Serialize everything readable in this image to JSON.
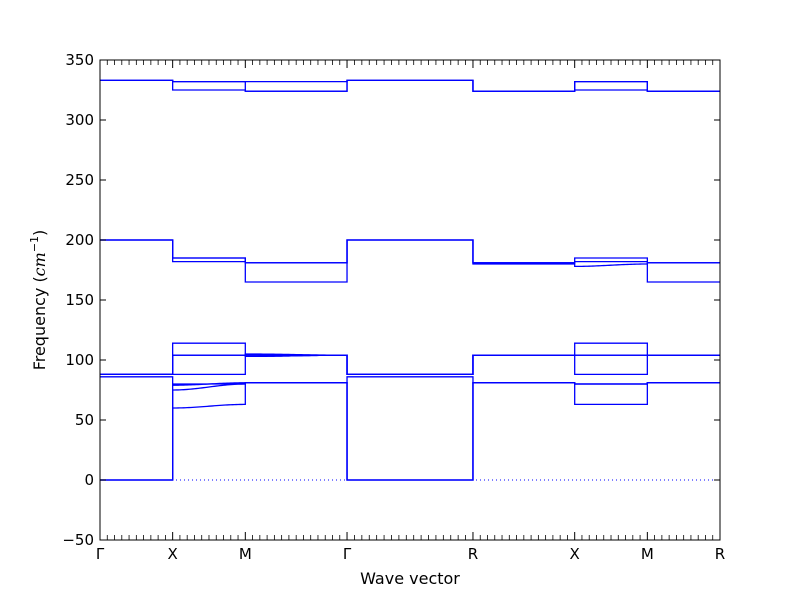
{
  "chart_data": {
    "type": "line",
    "title": "",
    "xlabel": "Wave vector",
    "ylabel_prefix": "Frequency (",
    "ylabel_unit_base": "cm",
    "ylabel_unit_exp": "−1",
    "ylabel_suffix": ")",
    "ylim": [
      -50,
      350
    ],
    "yticks": [
      -50,
      0,
      50,
      100,
      150,
      200,
      250,
      300,
      350
    ],
    "ytick_labels": [
      "−50",
      "0",
      "50",
      "100",
      "150",
      "200",
      "250",
      "300",
      "350"
    ],
    "xlim": [
      0,
      5.12
    ],
    "high_symmetry_points": [
      {
        "label": "Γ",
        "x": 0.0
      },
      {
        "label": "X",
        "x": 0.6
      },
      {
        "label": "M",
        "x": 1.2
      },
      {
        "label": "Γ",
        "x": 2.04
      },
      {
        "label": "R",
        "x": 3.08
      },
      {
        "label": "X",
        "x": 3.92
      },
      {
        "label": "M",
        "x": 4.52
      },
      {
        "label": "R",
        "x": 5.12
      }
    ],
    "zero_line": {
      "y": 0,
      "style": "dotted"
    },
    "series_color": "#0000ff",
    "series": [
      {
        "segments": [
          [
            0,
            0
          ],
          [
            60,
            63
          ],
          [
            81,
            81
          ],
          [
            0,
            0
          ],
          [
            81,
            81
          ],
          [
            80,
            80
          ],
          [
            81,
            81
          ]
        ]
      },
      {
        "segments": [
          [
            0,
            0
          ],
          [
            75,
            80
          ],
          [
            81,
            81
          ],
          [
            0,
            0
          ],
          [
            81,
            81
          ],
          [
            80,
            80
          ],
          [
            81,
            81
          ]
        ]
      },
      {
        "segments": [
          [
            0,
            0
          ],
          [
            79,
            81
          ],
          [
            81,
            81
          ],
          [
            0,
            0
          ],
          [
            81,
            81
          ],
          [
            80,
            80
          ],
          [
            81,
            81
          ]
        ]
      },
      {
        "segments": [
          [
            86,
            86
          ],
          [
            80,
            80
          ],
          [
            81,
            81
          ],
          [
            86,
            86
          ],
          [
            81,
            81
          ],
          [
            63,
            63
          ],
          [
            81,
            81
          ]
        ]
      },
      {
        "segments": [
          [
            88,
            88
          ],
          [
            88,
            88
          ],
          [
            103,
            104
          ],
          [
            88,
            88
          ],
          [
            104,
            104
          ],
          [
            88,
            88
          ],
          [
            104,
            104
          ]
        ]
      },
      {
        "segments": [
          [
            88,
            88
          ],
          [
            104,
            104
          ],
          [
            104,
            104
          ],
          [
            88,
            88
          ],
          [
            104,
            104
          ],
          [
            104,
            104
          ],
          [
            104,
            104
          ]
        ]
      },
      {
        "segments": [
          [
            88,
            88
          ],
          [
            104,
            104
          ],
          [
            105,
            104
          ],
          [
            88,
            88
          ],
          [
            104,
            104
          ],
          [
            104,
            104
          ],
          [
            104,
            104
          ]
        ]
      },
      {
        "segments": [
          [
            88,
            88
          ],
          [
            114,
            114
          ],
          [
            103,
            104
          ],
          [
            88,
            88
          ],
          [
            104,
            104
          ],
          [
            114,
            114
          ],
          [
            104,
            104
          ]
        ]
      },
      {
        "segments": [
          [
            200,
            200
          ],
          [
            182,
            182
          ],
          [
            165,
            165
          ],
          [
            200,
            200
          ],
          [
            180,
            180
          ],
          [
            178,
            180
          ],
          [
            165,
            165
          ]
        ]
      },
      {
        "segments": [
          [
            200,
            200
          ],
          [
            185,
            185
          ],
          [
            181,
            181
          ],
          [
            200,
            200
          ],
          [
            181,
            181
          ],
          [
            182,
            182
          ],
          [
            181,
            181
          ]
        ]
      },
      {
        "segments": [
          [
            200,
            200
          ],
          [
            185,
            185
          ],
          [
            181,
            181
          ],
          [
            200,
            200
          ],
          [
            181,
            181
          ],
          [
            185,
            185
          ],
          [
            181,
            181
          ]
        ]
      },
      {
        "segments": [
          [
            333,
            333
          ],
          [
            325,
            325
          ],
          [
            324,
            324
          ],
          [
            333,
            333
          ],
          [
            324,
            324
          ],
          [
            332,
            332
          ],
          [
            324,
            324
          ]
        ]
      },
      {
        "segments": [
          [
            333,
            333
          ],
          [
            332,
            332
          ],
          [
            324,
            324
          ],
          [
            333,
            333
          ],
          [
            324,
            324
          ],
          [
            325,
            325
          ],
          [
            324,
            324
          ]
        ]
      },
      {
        "segments": [
          [
            333,
            333
          ],
          [
            332,
            332
          ],
          [
            332,
            332
          ],
          [
            333,
            333
          ],
          [
            324,
            324
          ],
          [
            332,
            332
          ],
          [
            324,
            324
          ]
        ]
      }
    ],
    "grid": false,
    "legend": "none"
  }
}
